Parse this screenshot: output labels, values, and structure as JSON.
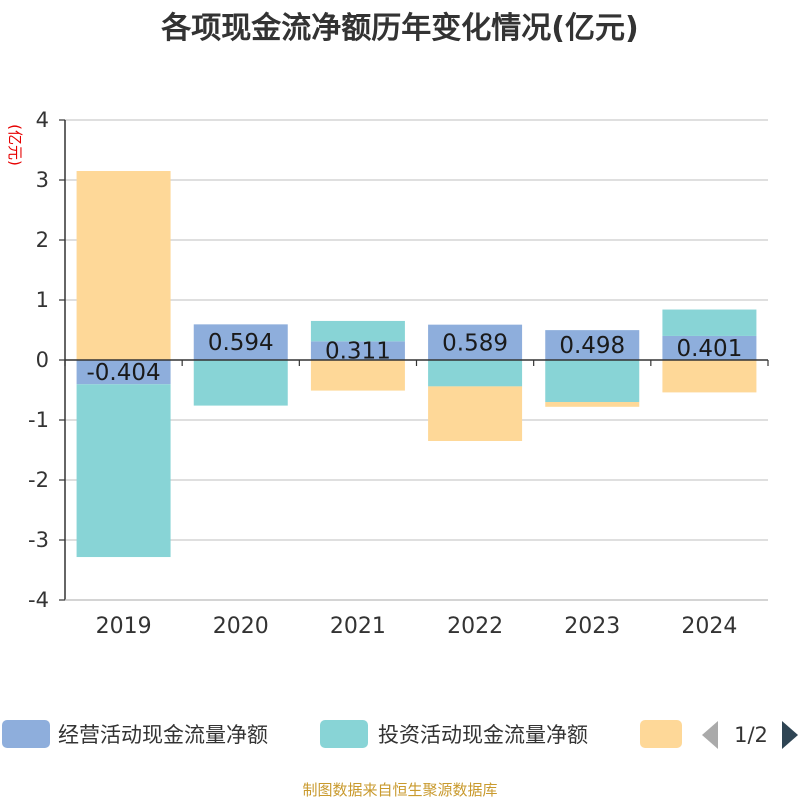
{
  "chart_data": {
    "type": "bar",
    "stacked": true,
    "title": "各项现金流净额历年变化情况(亿元)",
    "ylabel": "(亿元)",
    "ylim": [
      -4,
      4
    ],
    "yticks": [
      4,
      3,
      2,
      1,
      0,
      -1,
      -2,
      -3,
      -4
    ],
    "categories": [
      "2019",
      "2020",
      "2021",
      "2022",
      "2023",
      "2024"
    ],
    "series": [
      {
        "name": "经营活动现金流量净额",
        "color": "#8eaedc",
        "values": [
          -0.404,
          0.594,
          0.311,
          0.589,
          0.498,
          0.401
        ],
        "labels": [
          "-0.404",
          "0.594",
          "0.311",
          "0.589",
          "0.498",
          "0.401"
        ]
      },
      {
        "name": "投资活动现金流量净额",
        "color": "#88d4d6",
        "values": [
          -2.88,
          -0.76,
          0.34,
          -0.44,
          -0.7,
          0.44
        ]
      },
      {
        "name": "",
        "color": "#fed898",
        "values": [
          3.15,
          0.0,
          -0.51,
          -0.91,
          -0.08,
          -0.54
        ]
      }
    ],
    "legend_position": "bottom",
    "legend_page": "1/2"
  },
  "footer": "制图数据来自恒生聚源数据库"
}
